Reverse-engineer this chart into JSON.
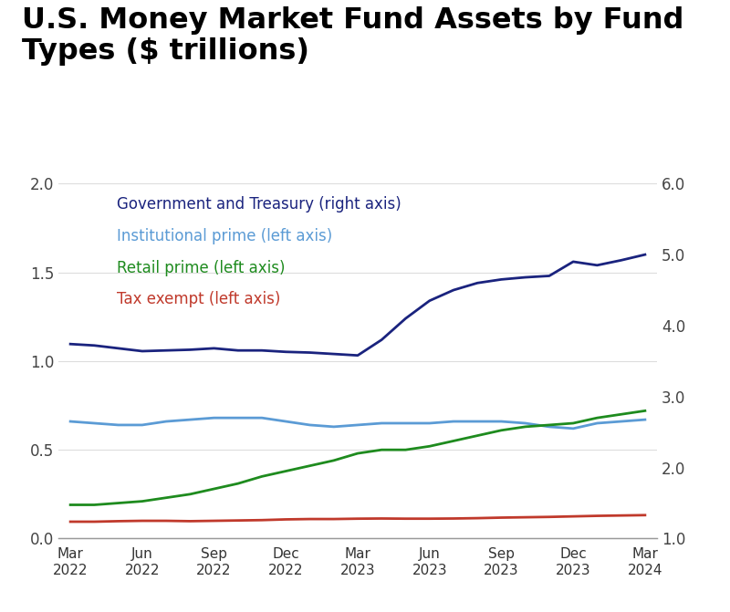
{
  "title_line1": "U.S. Money Market Fund Assets by Fund",
  "title_line2": "Types ($ trillions)",
  "title_fontsize": 23,
  "title_fontweight": "bold",
  "background_color": "#ffffff",
  "x_tick_labels": [
    "Mar\n2022",
    "Jun\n2022",
    "Sep\n2022",
    "Dec\n2022",
    "Mar\n2023",
    "Jun\n2023",
    "Sep\n2023",
    "Dec\n2023",
    "Mar\n2024"
  ],
  "x_positions": [
    0,
    3,
    6,
    9,
    12,
    15,
    18,
    21,
    24
  ],
  "left_ylim": [
    0.0,
    2.0
  ],
  "right_ylim": [
    1.0,
    6.0
  ],
  "left_yticks": [
    0.0,
    0.5,
    1.0,
    1.5,
    2.0
  ],
  "right_yticks": [
    1.0,
    2.0,
    3.0,
    4.0,
    5.0,
    6.0
  ],
  "gov_treasury": {
    "label": "Government and Treasury (right axis)",
    "color": "#1a237e",
    "axis": "right",
    "x": [
      0,
      1,
      2,
      3,
      4,
      5,
      6,
      7,
      8,
      9,
      10,
      11,
      12,
      13,
      14,
      15,
      16,
      17,
      18,
      19,
      20,
      21,
      22,
      23,
      24
    ],
    "y": [
      3.74,
      3.72,
      3.68,
      3.64,
      3.65,
      3.66,
      3.68,
      3.65,
      3.65,
      3.63,
      3.62,
      3.6,
      3.58,
      3.8,
      4.1,
      4.35,
      4.5,
      4.6,
      4.65,
      4.68,
      4.7,
      4.9,
      4.85,
      4.92,
      5.0
    ]
  },
  "inst_prime": {
    "label": "Institutional prime (left axis)",
    "color": "#5b9bd5",
    "axis": "left",
    "x": [
      0,
      1,
      2,
      3,
      4,
      5,
      6,
      7,
      8,
      9,
      10,
      11,
      12,
      13,
      14,
      15,
      16,
      17,
      18,
      19,
      20,
      21,
      22,
      23,
      24
    ],
    "y": [
      0.66,
      0.65,
      0.64,
      0.64,
      0.66,
      0.67,
      0.68,
      0.68,
      0.68,
      0.66,
      0.64,
      0.63,
      0.64,
      0.65,
      0.65,
      0.65,
      0.66,
      0.66,
      0.66,
      0.65,
      0.63,
      0.62,
      0.65,
      0.66,
      0.67
    ]
  },
  "retail_prime": {
    "label": "Retail prime (left axis)",
    "color": "#1e8b1e",
    "axis": "left",
    "x": [
      0,
      1,
      2,
      3,
      4,
      5,
      6,
      7,
      8,
      9,
      10,
      11,
      12,
      13,
      14,
      15,
      16,
      17,
      18,
      19,
      20,
      21,
      22,
      23,
      24
    ],
    "y": [
      0.19,
      0.19,
      0.2,
      0.21,
      0.23,
      0.25,
      0.28,
      0.31,
      0.35,
      0.38,
      0.41,
      0.44,
      0.48,
      0.5,
      0.5,
      0.52,
      0.55,
      0.58,
      0.61,
      0.63,
      0.64,
      0.65,
      0.68,
      0.7,
      0.72
    ]
  },
  "tax_exempt": {
    "label": "Tax exempt (left axis)",
    "color": "#c0392b",
    "axis": "left",
    "x": [
      0,
      1,
      2,
      3,
      4,
      5,
      6,
      7,
      8,
      9,
      10,
      11,
      12,
      13,
      14,
      15,
      16,
      17,
      18,
      19,
      20,
      21,
      22,
      23,
      24
    ],
    "y": [
      0.095,
      0.095,
      0.098,
      0.1,
      0.1,
      0.098,
      0.1,
      0.102,
      0.104,
      0.108,
      0.11,
      0.11,
      0.112,
      0.113,
      0.112,
      0.112,
      0.113,
      0.115,
      0.118,
      0.12,
      0.122,
      0.125,
      0.128,
      0.13,
      0.132
    ]
  },
  "legend_items": [
    {
      "label": "Government and Treasury (right axis)",
      "color": "#1a237e"
    },
    {
      "label": "Institutional prime (left axis)",
      "color": "#5b9bd5"
    },
    {
      "label": "Retail prime (left axis)",
      "color": "#1e8b1e"
    },
    {
      "label": "Tax exempt (left axis)",
      "color": "#c0392b"
    }
  ]
}
